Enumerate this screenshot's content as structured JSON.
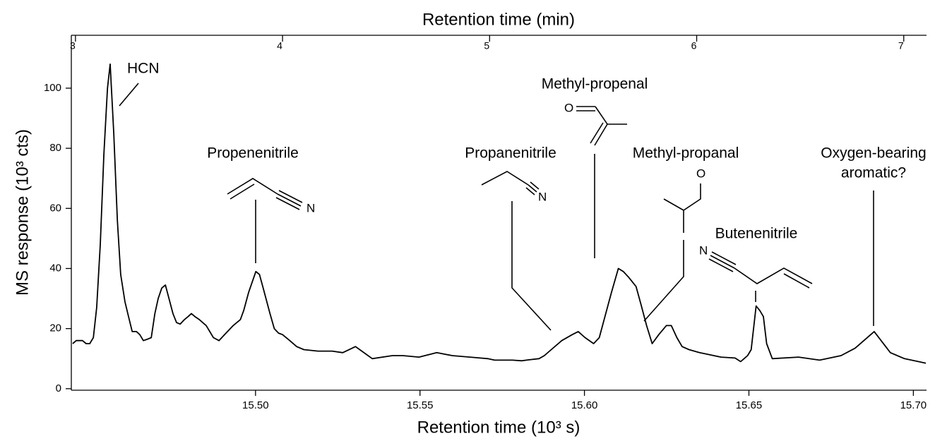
{
  "chart_data": {
    "type": "line",
    "title": "Retention time (min)",
    "xlabel": "Retention time (10³ s)",
    "ylabel": "MS response (10³ cts)",
    "xlim": [
      15.444,
      15.704
    ],
    "xticks": [
      {
        "value": 15.5,
        "label": "15.50"
      },
      15.55,
      {
        "value": 15.6,
        "label": "15.60"
      },
      15.65,
      {
        "value": 15.7,
        "label": "15.70"
      }
    ],
    "x2lim": [
      2.98,
      7.11
    ],
    "x2ticks": [
      3,
      4,
      5,
      6,
      7
    ],
    "ylim": [
      -0.5,
      117.6
    ],
    "yticks": [
      0,
      20,
      40,
      60,
      80,
      100
    ],
    "grid": false,
    "series": [
      {
        "color": "#000000",
        "x": [
          15.4444,
          15.4455,
          15.4474,
          15.4485,
          15.4496,
          15.4507,
          15.4517,
          15.4528,
          15.4539,
          15.455,
          15.4558,
          15.4569,
          15.458,
          15.459,
          15.4603,
          15.4614,
          15.4625,
          15.4638,
          15.4648,
          15.4659,
          15.4672,
          15.4683,
          15.4694,
          15.4704,
          15.4715,
          15.4726,
          15.4737,
          15.4749,
          15.476,
          15.4771,
          15.4784,
          15.4795,
          15.4805,
          15.4816,
          15.4829,
          15.485,
          15.4872,
          15.4889,
          15.4906,
          15.4932,
          15.4954,
          15.4964,
          15.4979,
          15.5001,
          15.5012,
          15.5022,
          15.5044,
          15.5057,
          15.507,
          15.5082,
          15.5104,
          15.5125,
          15.5147,
          15.519,
          15.5233,
          15.5265,
          15.5304,
          15.5355,
          15.5416,
          15.5448,
          15.5497,
          15.5551,
          15.5598,
          15.5652,
          15.5706,
          15.5727,
          15.5781,
          15.5809,
          15.583,
          15.5862,
          15.5878,
          15.5899,
          15.5931,
          15.5963,
          15.5981,
          15.6002,
          15.6028,
          15.6045,
          15.606,
          15.6082,
          15.6103,
          15.6118,
          15.6135,
          15.6157,
          15.6172,
          15.6189,
          15.6206,
          15.6226,
          15.6249,
          15.6264,
          15.6281,
          15.6297,
          15.6318,
          15.635,
          15.6372,
          15.6415,
          15.6458,
          15.6475,
          15.6496,
          15.6507,
          15.6522,
          15.6533,
          15.6544,
          15.6554,
          15.6571,
          15.6651,
          15.6715,
          15.678,
          15.6823,
          15.6881,
          15.693,
          15.6973,
          15.7016,
          15.7038
        ],
        "values": [
          15,
          16,
          16,
          15,
          15,
          17,
          27,
          48,
          78,
          100,
          108,
          85,
          56,
          38,
          29,
          24,
          19,
          19,
          18,
          16,
          16.5,
          17,
          25,
          30,
          33.5,
          34.5,
          30,
          25,
          22,
          21.5,
          23,
          24,
          25,
          24,
          23,
          21,
          17,
          16,
          18,
          21,
          23,
          26,
          32,
          39,
          38,
          34,
          25,
          20,
          18.5,
          18,
          16,
          14,
          13,
          12.5,
          12.5,
          12,
          14,
          10,
          11,
          11,
          10.5,
          12,
          11,
          10.5,
          10,
          9.5,
          9.5,
          9.3,
          9.6,
          10,
          11,
          13,
          16,
          18,
          19,
          17,
          15,
          17,
          23,
          32,
          40,
          39,
          37,
          34,
          28,
          21,
          15,
          18,
          21,
          21,
          17,
          14,
          13,
          12,
          11.5,
          10.5,
          10.2,
          9,
          11,
          13,
          27.5,
          26,
          24,
          15,
          10,
          10.5,
          9.5,
          11,
          13.5,
          19,
          12,
          10,
          9,
          8.5
        ]
      }
    ],
    "annotations": [
      {
        "text": "HCN"
      },
      {
        "text": "Propenenitrile",
        "atom": "N"
      },
      {
        "text": "Propanenitrile",
        "atom": "N"
      },
      {
        "text": "Methyl-propenal",
        "atom": "O"
      },
      {
        "text": "Methyl-propanal",
        "atom": "O"
      },
      {
        "text": "Butenenitrile",
        "atom": "N"
      },
      {
        "text": [
          "Oxygen-bearing",
          "aromatic?"
        ]
      }
    ]
  }
}
